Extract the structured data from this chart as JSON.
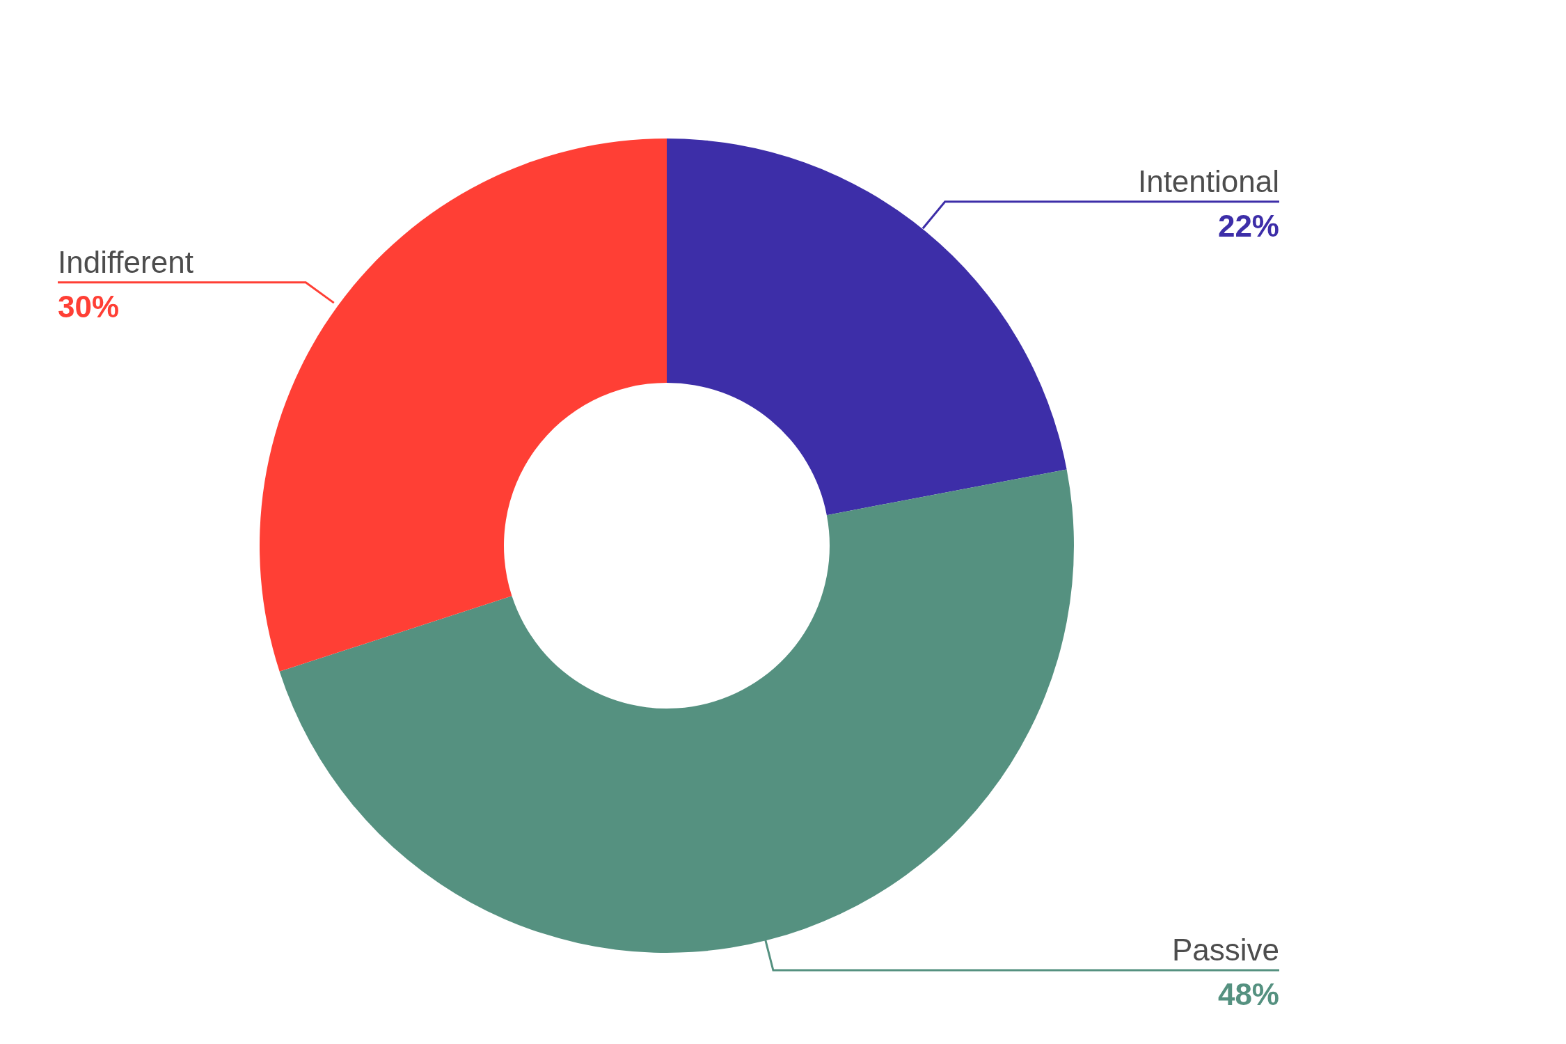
{
  "chart_data": {
    "type": "donut",
    "categories": [
      "Intentional",
      "Passive",
      "Indifferent"
    ],
    "values": [
      22,
      48,
      30
    ],
    "colors": [
      "#3d2ea8",
      "#559180",
      "#ff3f35"
    ],
    "value_labels": [
      "22%",
      "48%",
      "30%"
    ]
  }
}
